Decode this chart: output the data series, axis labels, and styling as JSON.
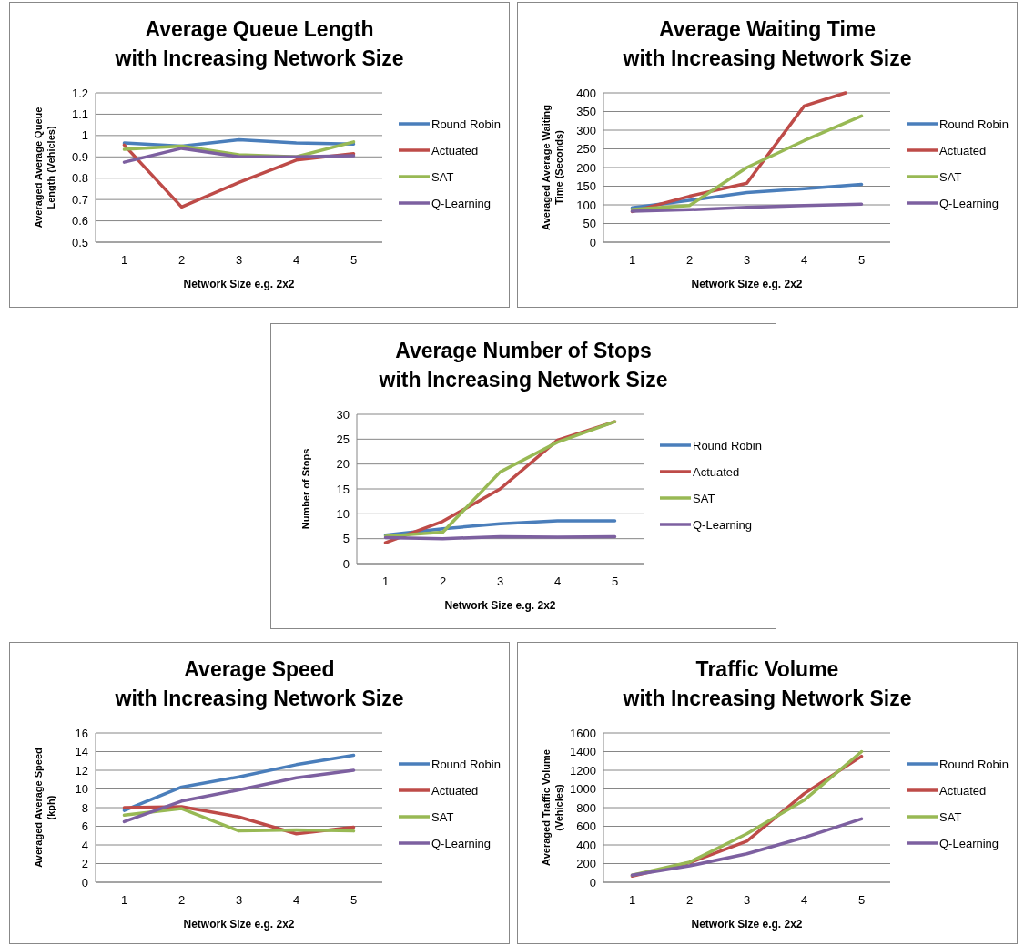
{
  "chart_data": [
    {
      "type": "line",
      "title": "Average Queue Length",
      "subtitle": "with Increasing Network Size",
      "xlabel": "Network Size e.g. 2x2",
      "ylabel": "Averaged Average Queue Length (Vehicles)",
      "x": [
        1,
        2,
        3,
        4,
        5
      ],
      "xlim": [
        0.5,
        5.5
      ],
      "xticks": [
        1,
        2,
        3,
        4,
        5
      ],
      "ylim": [
        0.5,
        1.2
      ],
      "yticks": [
        0.5,
        0.6,
        0.7,
        0.8,
        0.9,
        1,
        1.1,
        1.2
      ],
      "grid": "y",
      "legend": "right",
      "marker": "none",
      "series": [
        {
          "name": "Round Robin",
          "color": "#4a7ebb",
          "values": [
            0.965,
            0.95,
            0.98,
            0.965,
            0.96
          ]
        },
        {
          "name": "Actuated",
          "color": "#be4b48",
          "values": [
            0.955,
            0.665,
            0.78,
            0.885,
            0.915
          ]
        },
        {
          "name": "SAT",
          "color": "#98b954",
          "values": [
            0.935,
            0.95,
            0.91,
            0.9,
            0.97
          ]
        },
        {
          "name": "Q-Learning",
          "color": "#7d60a0",
          "values": [
            0.875,
            0.94,
            0.9,
            0.9,
            0.905
          ]
        }
      ]
    },
    {
      "type": "line",
      "title": "Average Waiting Time",
      "subtitle": "with Increasing Network Size",
      "xlabel": "Network Size e.g. 2x2",
      "ylabel": "Averaged Average Waiting Time (Seconds)",
      "x": [
        1,
        2,
        3,
        4,
        5
      ],
      "xlim": [
        0.5,
        5.5
      ],
      "xticks": [
        1,
        2,
        3,
        4,
        5
      ],
      "ylim": [
        0,
        400
      ],
      "yticks": [
        0,
        50,
        100,
        150,
        200,
        250,
        300,
        350,
        400
      ],
      "grid": "y",
      "legend": "right",
      "marker": "none",
      "series": [
        {
          "name": "Round Robin",
          "color": "#4a7ebb",
          "values": [
            92,
            112,
            133,
            143,
            155
          ]
        },
        {
          "name": "Actuated",
          "color": "#be4b48",
          "x": [
            1,
            2,
            3,
            4,
            4.72
          ],
          "values": [
            82,
            123,
            158,
            365,
            400
          ]
        },
        {
          "name": "SAT",
          "color": "#98b954",
          "values": [
            88,
            98,
            200,
            272,
            338
          ]
        },
        {
          "name": "Q-Learning",
          "color": "#7d60a0",
          "values": [
            83,
            87,
            93,
            98,
            102
          ]
        }
      ]
    },
    {
      "type": "line",
      "title": "Average Number of Stops",
      "subtitle": "with Increasing Network Size",
      "xlabel": "Network Size e.g. 2x2",
      "ylabel": "Number of Stops",
      "x": [
        1,
        2,
        3,
        4,
        5
      ],
      "xlim": [
        0.5,
        5.5
      ],
      "xticks": [
        1,
        2,
        3,
        4,
        5
      ],
      "ylim": [
        0,
        30
      ],
      "yticks": [
        0,
        5,
        10,
        15,
        20,
        25,
        30
      ],
      "grid": "y",
      "legend": "right",
      "marker": "none",
      "series": [
        {
          "name": "Round Robin",
          "color": "#4a7ebb",
          "values": [
            5.7,
            7,
            8,
            8.6,
            8.6
          ]
        },
        {
          "name": "Actuated",
          "color": "#be4b48",
          "values": [
            4.2,
            8.5,
            15,
            24.8,
            28.5
          ]
        },
        {
          "name": "SAT",
          "color": "#98b954",
          "values": [
            5.5,
            6.3,
            18.4,
            24.4,
            28.5
          ]
        },
        {
          "name": "Q-Learning",
          "color": "#7d60a0",
          "values": [
            5.2,
            5,
            5.4,
            5.3,
            5.4
          ]
        }
      ]
    },
    {
      "type": "line",
      "title": "Average Speed",
      "subtitle": "with Increasing Network Size",
      "xlabel": "Network Size e.g. 2x2",
      "ylabel": "Averaged Average Speed (kph)",
      "x": [
        1,
        2,
        3,
        4,
        5
      ],
      "xlim": [
        0.5,
        5.5
      ],
      "xticks": [
        1,
        2,
        3,
        4,
        5
      ],
      "ylim": [
        0,
        16
      ],
      "yticks": [
        0,
        2,
        4,
        6,
        8,
        10,
        12,
        14,
        16
      ],
      "grid": "y",
      "legend": "right",
      "marker": "none",
      "series": [
        {
          "name": "Round Robin",
          "color": "#4a7ebb",
          "values": [
            7.7,
            10.2,
            11.3,
            12.6,
            13.6
          ]
        },
        {
          "name": "Actuated",
          "color": "#be4b48",
          "values": [
            8,
            8.1,
            7,
            5.2,
            5.9
          ]
        },
        {
          "name": "SAT",
          "color": "#98b954",
          "values": [
            7.2,
            7.9,
            5.5,
            5.6,
            5.5
          ]
        },
        {
          "name": "Q-Learning",
          "color": "#7d60a0",
          "values": [
            6.5,
            8.7,
            9.9,
            11.2,
            12
          ]
        }
      ]
    },
    {
      "type": "line",
      "title": "Traffic Volume",
      "subtitle": "with Increasing Network Size",
      "xlabel": "Network Size e.g. 2x2",
      "ylabel": "Averaged Traffic Volume (Vehicles)",
      "x": [
        1,
        2,
        3,
        4,
        5
      ],
      "xlim": [
        0.5,
        5.5
      ],
      "xticks": [
        1,
        2,
        3,
        4,
        5
      ],
      "ylim": [
        0,
        1600
      ],
      "yticks": [
        0,
        200,
        400,
        600,
        800,
        1000,
        1200,
        1400,
        1600
      ],
      "grid": "y",
      "legend": "right",
      "marker": "none",
      "series": [
        {
          "name": "Round Robin",
          "color": "#4a7ebb",
          "values": [
            null,
            null,
            null,
            null,
            null
          ]
        },
        {
          "name": "Actuated",
          "color": "#be4b48",
          "values": [
            65,
            210,
            440,
            950,
            1350
          ]
        },
        {
          "name": "SAT",
          "color": "#98b954",
          "values": [
            75,
            215,
            520,
            880,
            1400
          ]
        },
        {
          "name": "Q-Learning",
          "color": "#7d60a0",
          "values": [
            75,
            175,
            305,
            480,
            680
          ]
        }
      ]
    }
  ]
}
